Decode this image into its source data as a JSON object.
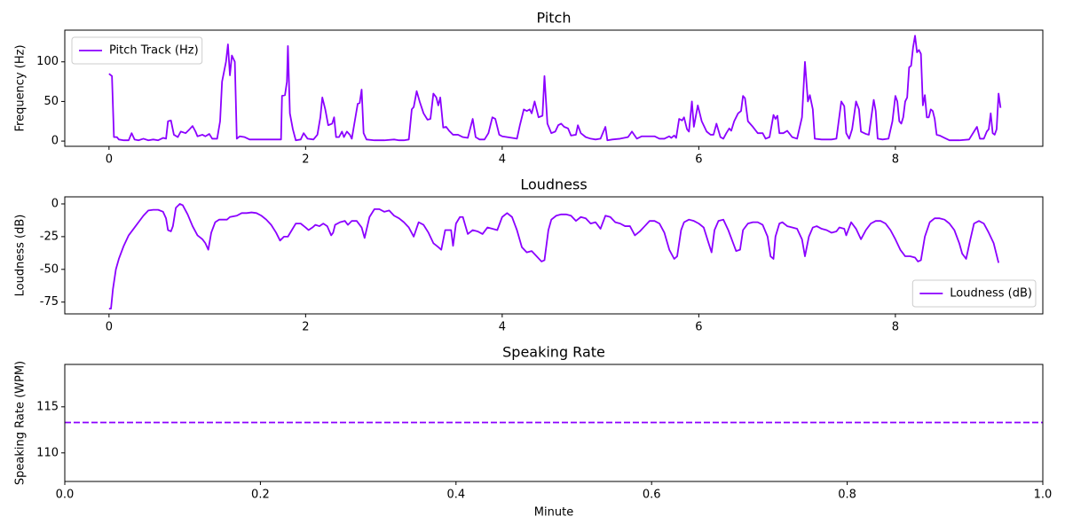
{
  "chart_data": [
    {
      "type": "line",
      "title": "Pitch",
      "ylabel": "Frequency (Hz)",
      "legend": "upper left",
      "xlim": [
        -0.45,
        9.5
      ],
      "xticks": [
        0,
        2,
        4,
        6,
        8
      ],
      "ylim": [
        -6.6,
        140
      ],
      "yticks": [
        0,
        50,
        100
      ],
      "x": [
        0,
        0.03,
        0.05,
        0.08,
        0.1,
        0.15,
        0.2,
        0.23,
        0.26,
        0.3,
        0.35,
        0.4,
        0.45,
        0.5,
        0.55,
        0.58,
        0.6,
        0.63,
        0.66,
        0.7,
        0.73,
        0.78,
        0.82,
        0.85,
        0.88,
        0.9,
        0.95,
        0.98,
        1.02,
        1.05,
        1.1,
        1.13,
        1.15,
        1.19,
        1.21,
        1.23,
        1.25,
        1.28,
        1.3,
        1.33,
        1.38,
        1.43,
        1.5,
        1.6,
        1.7,
        1.75,
        1.76,
        1.79,
        1.81,
        1.82,
        1.84,
        1.87,
        1.9,
        1.95,
        1.98,
        2.02,
        2.08,
        2.12,
        2.15,
        2.17,
        2.2,
        2.23,
        2.27,
        2.29,
        2.31,
        2.34,
        2.37,
        2.39,
        2.42,
        2.45,
        2.47,
        2.5,
        2.53,
        2.55,
        2.57,
        2.59,
        2.62,
        2.7,
        2.8,
        2.9,
        2.95,
        3.0,
        3.05,
        3.08,
        3.1,
        3.13,
        3.16,
        3.2,
        3.24,
        3.27,
        3.3,
        3.33,
        3.35,
        3.37,
        3.4,
        3.43,
        3.46,
        3.5,
        3.55,
        3.6,
        3.65,
        3.7,
        3.73,
        3.77,
        3.82,
        3.86,
        3.9,
        3.93,
        3.97,
        4.0,
        4.05,
        4.1,
        4.15,
        4.18,
        4.22,
        4.25,
        4.28,
        4.3,
        4.33,
        4.37,
        4.41,
        4.43,
        4.46,
        4.5,
        4.54,
        4.57,
        4.6,
        4.63,
        4.67,
        4.7,
        4.75,
        4.77,
        4.8,
        4.85,
        4.9,
        4.95,
        5.0,
        5.05,
        5.07,
        5.12,
        5.2,
        5.28,
        5.32,
        5.37,
        5.42,
        5.5,
        5.55,
        5.6,
        5.65,
        5.7,
        5.72,
        5.75,
        5.77,
        5.8,
        5.83,
        5.85,
        5.88,
        5.9,
        5.93,
        5.95,
        5.99,
        6.03,
        6.08,
        6.12,
        6.15,
        6.18,
        6.22,
        6.25,
        6.28,
        6.31,
        6.33,
        6.36,
        6.4,
        6.43,
        6.45,
        6.47,
        6.5,
        6.55,
        6.6,
        6.65,
        6.68,
        6.72,
        6.76,
        6.78,
        6.8,
        6.82,
        6.86,
        6.9,
        6.95,
        7.0,
        7.05,
        7.08,
        7.11,
        7.13,
        7.16,
        7.18,
        7.25,
        7.35,
        7.4,
        7.45,
        7.48,
        7.5,
        7.53,
        7.56,
        7.6,
        7.63,
        7.65,
        7.7,
        7.73,
        7.78,
        7.8,
        7.82,
        7.87,
        7.93,
        7.97,
        8.0,
        8.02,
        8.04,
        8.06,
        8.08,
        8.1,
        8.12,
        8.14,
        8.16,
        8.18,
        8.2,
        8.22,
        8.24,
        8.26,
        8.28,
        8.3,
        8.32,
        8.34,
        8.36,
        8.38,
        8.4,
        8.42,
        8.45,
        8.5,
        8.55,
        8.65,
        8.75,
        8.8,
        8.83,
        8.86,
        8.9,
        8.93,
        8.95,
        8.97,
        8.99,
        9.01,
        9.03,
        9.05,
        9.07
      ],
      "series": [
        {
          "name": "Pitch Track (Hz)",
          "color": "#8b00ff",
          "values": [
            85,
            82,
            5,
            5,
            2,
            1,
            1,
            10,
            2,
            1,
            3,
            1,
            2,
            1,
            4,
            3,
            25,
            26,
            8,
            5,
            12,
            10,
            15,
            19,
            12,
            6,
            8,
            6,
            9,
            3,
            3,
            25,
            75,
            100,
            122,
            83,
            108,
            100,
            3,
            6,
            5,
            2,
            2,
            2,
            2,
            2,
            57,
            58,
            75,
            120,
            35,
            15,
            1,
            2,
            10,
            3,
            2,
            8,
            30,
            55,
            40,
            20,
            22,
            30,
            5,
            5,
            12,
            5,
            12,
            8,
            3,
            25,
            47,
            48,
            65,
            10,
            2,
            1,
            1,
            2,
            1,
            1,
            2,
            40,
            43,
            63,
            50,
            35,
            27,
            28,
            60,
            55,
            45,
            55,
            17,
            18,
            13,
            8,
            8,
            5,
            4,
            28,
            5,
            2,
            2,
            10,
            30,
            28,
            8,
            6,
            5,
            4,
            3,
            20,
            40,
            38,
            40,
            35,
            50,
            30,
            32,
            82,
            22,
            10,
            12,
            20,
            22,
            18,
            16,
            7,
            8,
            20,
            10,
            5,
            3,
            2,
            3,
            18,
            1,
            2,
            3,
            5,
            12,
            3,
            6,
            6,
            6,
            3,
            3,
            6,
            4,
            7,
            4,
            28,
            26,
            30,
            15,
            12,
            50,
            18,
            45,
            25,
            12,
            8,
            8,
            22,
            5,
            3,
            10,
            16,
            13,
            25,
            35,
            38,
            57,
            54,
            25,
            18,
            10,
            10,
            3,
            5,
            33,
            28,
            32,
            10,
            10,
            13,
            5,
            3,
            30,
            100,
            50,
            58,
            40,
            3,
            2,
            2,
            3,
            50,
            44,
            10,
            3,
            15,
            50,
            40,
            12,
            9,
            8,
            52,
            38,
            3,
            2,
            3,
            25,
            57,
            50,
            25,
            22,
            30,
            50,
            55,
            93,
            95,
            118,
            133,
            112,
            115,
            110,
            45,
            58,
            30,
            30,
            40,
            38,
            28,
            8,
            7,
            4,
            1,
            1,
            2,
            12,
            18,
            3,
            3,
            12,
            15,
            35,
            10,
            8,
            15,
            60,
            42
          ]
        }
      ]
    },
    {
      "type": "line",
      "title": "Loudness",
      "ylabel": "Loudness (dB)",
      "legend": "lower right",
      "xlim": [
        -0.45,
        9.5
      ],
      "xticks": [
        0,
        2,
        4,
        6,
        8
      ],
      "ylim": [
        -84,
        5.4
      ],
      "yticks": [
        0,
        -25,
        -50,
        -75
      ],
      "x": [
        0,
        0.02,
        0.04,
        0.07,
        0.1,
        0.15,
        0.2,
        0.25,
        0.3,
        0.35,
        0.4,
        0.45,
        0.5,
        0.55,
        0.58,
        0.6,
        0.63,
        0.65,
        0.68,
        0.72,
        0.75,
        0.8,
        0.85,
        0.9,
        0.95,
        0.98,
        1.01,
        1.04,
        1.08,
        1.12,
        1.2,
        1.23,
        1.3,
        1.35,
        1.4,
        1.45,
        1.5,
        1.55,
        1.6,
        1.65,
        1.7,
        1.74,
        1.78,
        1.82,
        1.86,
        1.9,
        1.95,
        2.0,
        2.03,
        2.07,
        2.1,
        2.14,
        2.18,
        2.22,
        2.26,
        2.28,
        2.3,
        2.35,
        2.4,
        2.43,
        2.47,
        2.52,
        2.57,
        2.6,
        2.65,
        2.7,
        2.75,
        2.8,
        2.85,
        2.9,
        2.95,
        3.0,
        3.05,
        3.1,
        3.15,
        3.2,
        3.25,
        3.3,
        3.35,
        3.38,
        3.42,
        3.48,
        3.5,
        3.53,
        3.57,
        3.6,
        3.65,
        3.7,
        3.75,
        3.8,
        3.85,
        3.9,
        3.95,
        4.0,
        4.05,
        4.1,
        4.15,
        4.2,
        4.25,
        4.3,
        4.35,
        4.4,
        4.43,
        4.47,
        4.5,
        4.55,
        4.6,
        4.65,
        4.7,
        4.75,
        4.8,
        4.85,
        4.9,
        4.95,
        5.0,
        5.05,
        5.1,
        5.15,
        5.2,
        5.25,
        5.3,
        5.35,
        5.4,
        5.45,
        5.5,
        5.55,
        5.6,
        5.65,
        5.7,
        5.75,
        5.78,
        5.82,
        5.85,
        5.9,
        5.95,
        6.0,
        6.05,
        6.1,
        6.13,
        6.16,
        6.2,
        6.25,
        6.3,
        6.35,
        6.38,
        6.42,
        6.45,
        6.5,
        6.55,
        6.6,
        6.65,
        6.7,
        6.73,
        6.76,
        6.78,
        6.82,
        6.85,
        6.9,
        6.95,
        7.0,
        7.05,
        7.08,
        7.12,
        7.16,
        7.2,
        7.25,
        7.3,
        7.35,
        7.4,
        7.43,
        7.48,
        7.5,
        7.55,
        7.6,
        7.65,
        7.7,
        7.75,
        7.8,
        7.85,
        7.9,
        7.95,
        8.0,
        8.05,
        8.1,
        8.15,
        8.2,
        8.23,
        8.26,
        8.3,
        8.35,
        8.4,
        8.45,
        8.5,
        8.55,
        8.6,
        8.65,
        8.68,
        8.72,
        8.76,
        8.8,
        8.85,
        8.9,
        8.95,
        9.0,
        9.05
      ],
      "series": [
        {
          "name": "Loudness (dB)",
          "color": "#8b00ff",
          "values": [
            -80,
            -80,
            -65,
            -50,
            -42,
            -32,
            -24,
            -19,
            -14,
            -9,
            -5,
            -4.5,
            -4.5,
            -6,
            -11,
            -20,
            -21,
            -17,
            -3,
            0,
            -1,
            -8,
            -17,
            -24,
            -27,
            -30,
            -35,
            -22,
            -14,
            -12,
            -12,
            -10,
            -9,
            -7,
            -7,
            -6.5,
            -7,
            -9,
            -12,
            -16,
            -22,
            -28,
            -25,
            -25,
            -20,
            -15,
            -15,
            -18,
            -20,
            -18,
            -16,
            -17,
            -15,
            -17,
            -24,
            -22,
            -16,
            -14,
            -13,
            -16,
            -13,
            -13,
            -18,
            -26,
            -10,
            -4,
            -4,
            -6,
            -5,
            -9,
            -11,
            -14,
            -18,
            -25,
            -14,
            -16,
            -22,
            -30,
            -33,
            -35,
            -20,
            -20,
            -32,
            -15,
            -10,
            -10,
            -23,
            -20,
            -21,
            -23,
            -18,
            -19,
            -20,
            -10,
            -7,
            -10,
            -20,
            -33,
            -37,
            -36,
            -40,
            -44,
            -43,
            -20,
            -12,
            -9,
            -8,
            -8,
            -9,
            -13,
            -10,
            -11,
            -15,
            -14,
            -19,
            -9,
            -10,
            -14,
            -15,
            -17,
            -17,
            -24,
            -21,
            -17,
            -13,
            -13,
            -15,
            -22,
            -35,
            -42,
            -40,
            -20,
            -14,
            -12,
            -13,
            -15,
            -18,
            -30,
            -37,
            -20,
            -13,
            -12,
            -20,
            -30,
            -36,
            -35,
            -20,
            -15,
            -14,
            -14,
            -16,
            -25,
            -40,
            -42,
            -25,
            -15,
            -14,
            -17,
            -18,
            -19,
            -27,
            -40,
            -25,
            -18,
            -17,
            -19,
            -20,
            -22,
            -21,
            -18,
            -19,
            -24,
            -14,
            -19,
            -27,
            -20,
            -15,
            -13,
            -13,
            -15,
            -20,
            -27,
            -35,
            -40,
            -40,
            -41,
            -44,
            -43,
            -25,
            -14,
            -11,
            -11,
            -12,
            -15,
            -20,
            -30,
            -38,
            -42,
            -28,
            -15,
            -13,
            -15,
            -22,
            -30,
            -45
          ]
        }
      ]
    },
    {
      "type": "hline",
      "title": "Speaking Rate",
      "ylabel": "Speaking Rate (WPM)",
      "xlabel": "Minute",
      "xlim": [
        0,
        1
      ],
      "xticks": [
        {
          "value": 0,
          "label": "0.0"
        },
        0.2,
        0.4,
        0.6,
        0.8,
        {
          "value": 1,
          "label": "1.0"
        }
      ],
      "ylim": [
        106.9,
        119.6
      ],
      "yticks": [
        110,
        115
      ],
      "value": 113.3,
      "color": "#8b00ff",
      "linestyle": "dashed"
    }
  ]
}
